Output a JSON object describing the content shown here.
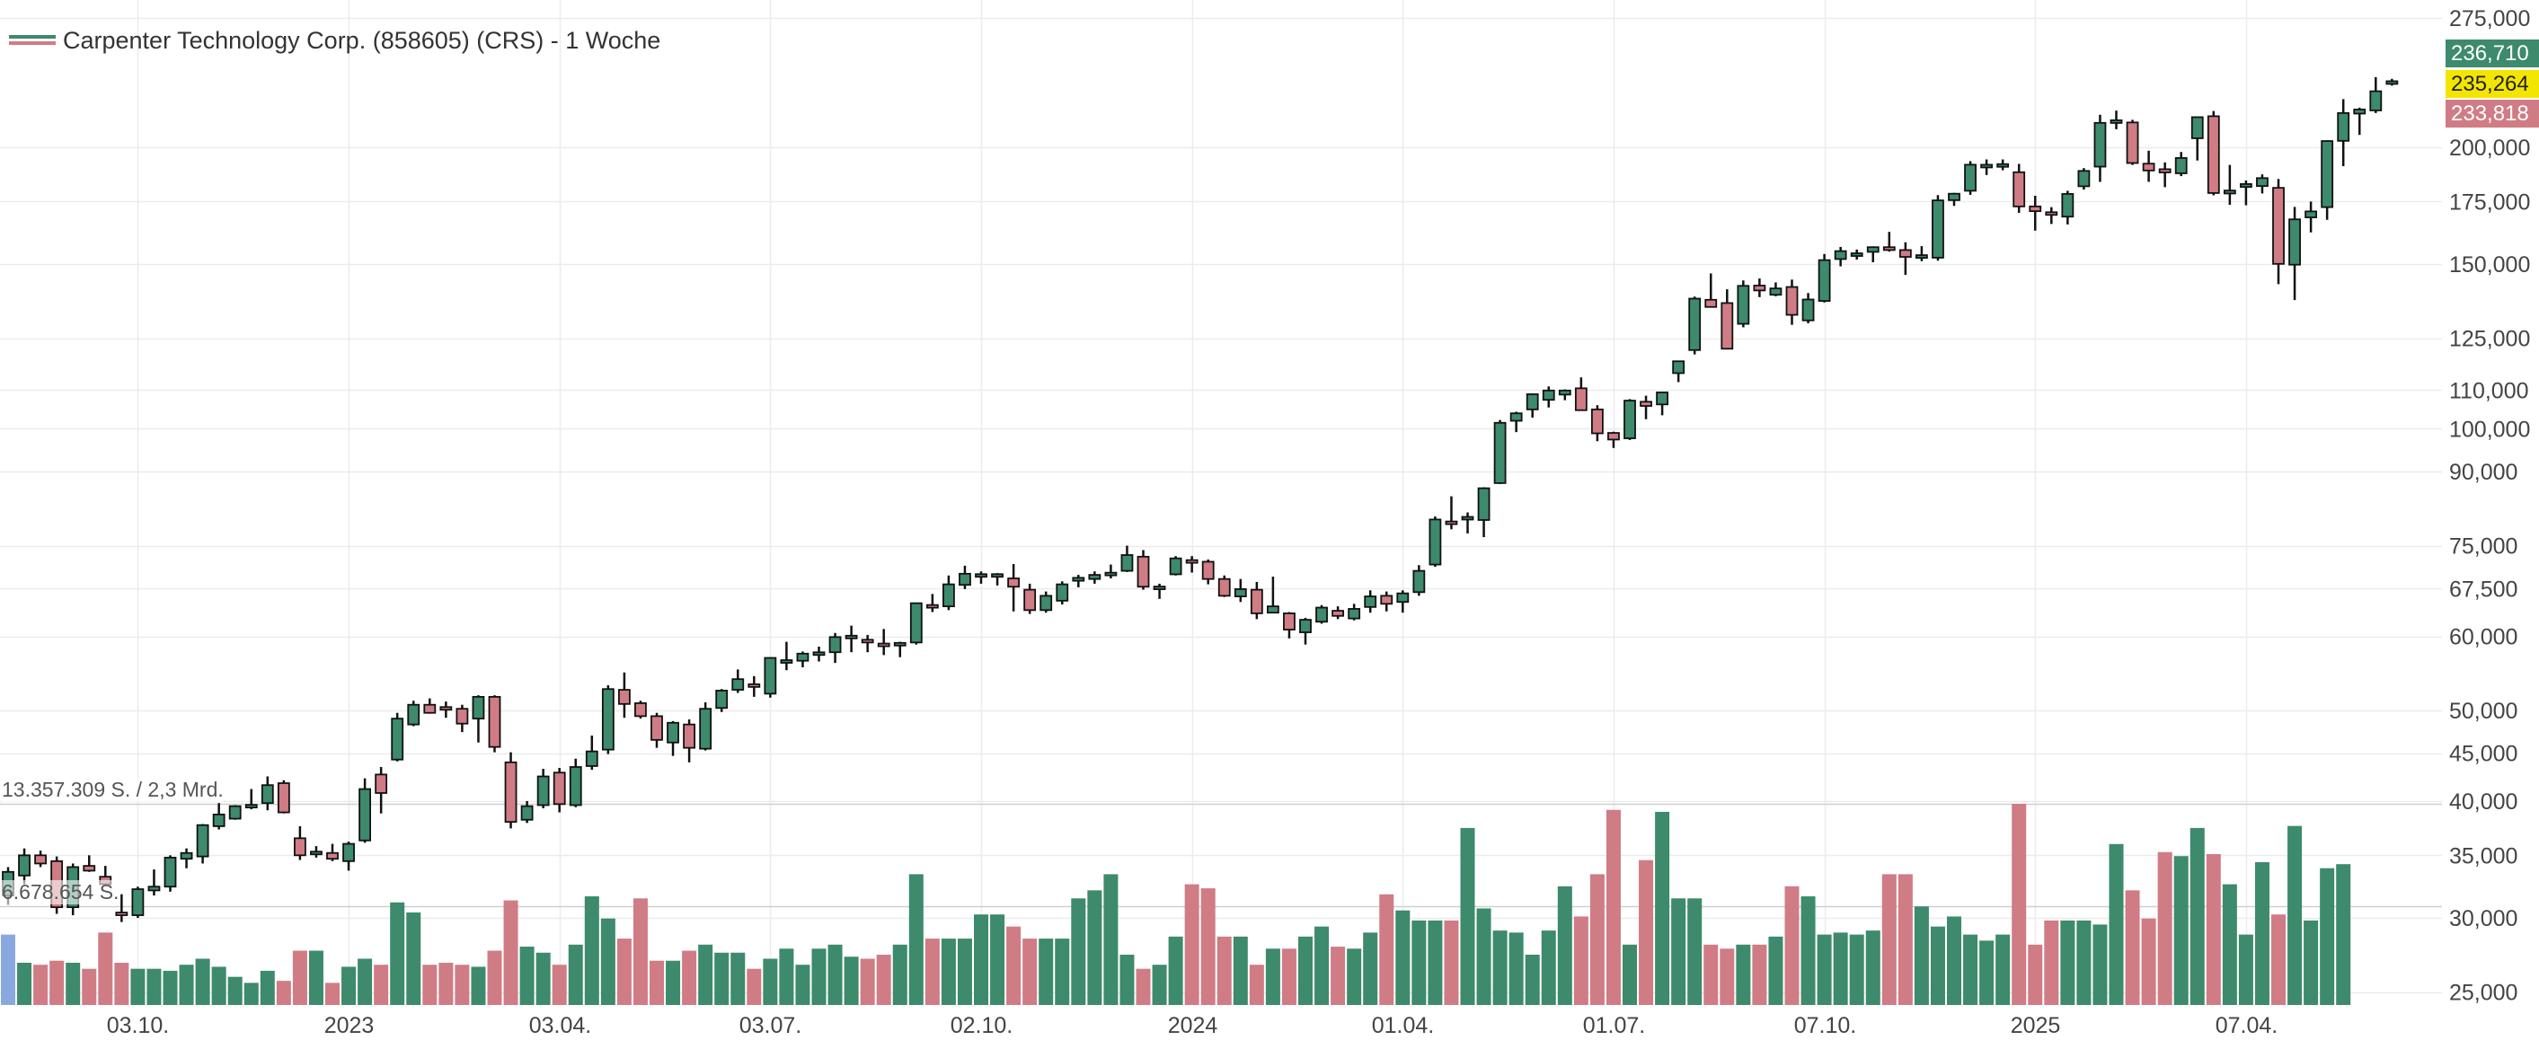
{
  "legend": {
    "title": "Carpenter Technology Corp. (858605) (CRS) - 1 Woche"
  },
  "price_tags": {
    "high": "236,710",
    "last": "235,264",
    "low": "233,818"
  },
  "volume_labels": {
    "max": "13.357.309 S. / 2,3 Mrd.",
    "mid": "6.678.654 S."
  },
  "colors": {
    "up": "#3d8a6c",
    "down": "#d07c85",
    "first_volume": "#8aa8e0",
    "tag_high": "#3d8a6c",
    "tag_last": "#f2e600",
    "tag_low": "#d07c85",
    "grid": "#ececec",
    "separator": "#cfcfcf"
  },
  "chart_data": {
    "type": "candlestick",
    "title": "Carpenter Technology Corp. (858605) (CRS) - 1 Woche",
    "y_scale": "log",
    "ylim": [
      26,
      275
    ],
    "y_ticks": [
      {
        "value": 275,
        "label": "275,000"
      },
      {
        "value": 200,
        "label": "200,000"
      },
      {
        "value": 175,
        "label": "175,000"
      },
      {
        "value": 150,
        "label": "150,000"
      },
      {
        "value": 125,
        "label": "125,000"
      },
      {
        "value": 110,
        "label": "110,000"
      },
      {
        "value": 100,
        "label": "100,000"
      },
      {
        "value": 90,
        "label": "90,000"
      },
      {
        "value": 75,
        "label": "75,000"
      },
      {
        "value": 67.5,
        "label": "67,500"
      },
      {
        "value": 60,
        "label": "60,000"
      },
      {
        "value": 50,
        "label": "50,000"
      },
      {
        "value": 45,
        "label": "45,000"
      },
      {
        "value": 40,
        "label": "40,000"
      },
      {
        "value": 35,
        "label": "35,000"
      },
      {
        "value": 30,
        "label": "30,000"
      },
      {
        "value": 25,
        "label": "25,000"
      }
    ],
    "x_ticks": [
      {
        "index": 8,
        "label": "03.10."
      },
      {
        "index": 21,
        "label": "2023"
      },
      {
        "index": 34,
        "label": "03.04."
      },
      {
        "index": 47,
        "label": "03.07."
      },
      {
        "index": 60,
        "label": "02.10."
      },
      {
        "index": 73,
        "label": "2024"
      },
      {
        "index": 86,
        "label": "01.04."
      },
      {
        "index": 99,
        "label": "01.07."
      },
      {
        "index": 112,
        "label": "07.10."
      },
      {
        "index": 125,
        "label": "2025"
      },
      {
        "index": 138,
        "label": "07.04."
      }
    ],
    "grid": true,
    "legend": "top-left",
    "volume_max_shares": 13357309,
    "candles": [
      [
        31.7,
        34.0,
        31.0,
        33.6
      ],
      [
        33.3,
        35.6,
        32.6,
        35.0
      ],
      [
        35.0,
        35.4,
        34.0,
        34.3
      ],
      [
        34.5,
        34.9,
        30.3,
        30.8
      ],
      [
        30.8,
        34.3,
        30.2,
        34.0
      ],
      [
        34.1,
        35.0,
        33.6,
        33.7
      ],
      [
        33.2,
        34.1,
        32.6,
        32.6
      ],
      [
        30.4,
        31.8,
        29.7,
        30.2
      ],
      [
        30.2,
        32.4,
        30.0,
        32.2
      ],
      [
        32.1,
        33.8,
        31.7,
        32.4
      ],
      [
        32.4,
        35.0,
        32.0,
        34.8
      ],
      [
        34.7,
        35.6,
        33.9,
        35.2
      ],
      [
        34.9,
        37.8,
        34.3,
        37.7
      ],
      [
        37.6,
        39.8,
        37.3,
        38.7
      ],
      [
        38.3,
        39.6,
        38.2,
        39.5
      ],
      [
        39.5,
        41.2,
        39.2,
        39.5
      ],
      [
        39.8,
        42.5,
        39.1,
        41.6
      ],
      [
        41.8,
        42.1,
        38.8,
        38.9
      ],
      [
        36.5,
        37.6,
        34.6,
        35.0
      ],
      [
        35.1,
        35.8,
        34.8,
        35.3
      ],
      [
        35.2,
        36.0,
        34.5,
        34.7
      ],
      [
        34.5,
        36.2,
        33.7,
        36.0
      ],
      [
        36.3,
        42.3,
        36.1,
        41.2
      ],
      [
        42.7,
        43.5,
        38.8,
        40.8
      ],
      [
        44.3,
        49.7,
        44.1,
        49.0
      ],
      [
        48.3,
        51.2,
        48.1,
        50.7
      ],
      [
        50.7,
        51.5,
        49.6,
        49.7
      ],
      [
        50.4,
        51.1,
        49.1,
        50.1
      ],
      [
        50.2,
        50.7,
        47.4,
        48.4
      ],
      [
        49.0,
        51.9,
        46.2,
        51.7
      ],
      [
        51.7,
        51.9,
        45.1,
        45.7
      ],
      [
        44.0,
        45.1,
        37.4,
        38.0
      ],
      [
        38.2,
        40.0,
        37.9,
        39.5
      ],
      [
        39.6,
        43.3,
        39.3,
        42.5
      ],
      [
        42.9,
        43.4,
        38.9,
        39.7
      ],
      [
        39.6,
        44.4,
        39.4,
        43.5
      ],
      [
        43.6,
        47.0,
        43.2,
        45.2
      ],
      [
        45.4,
        53.2,
        44.9,
        52.7
      ],
      [
        52.6,
        54.9,
        49.1,
        50.8
      ],
      [
        50.9,
        51.2,
        49.0,
        49.3
      ],
      [
        49.3,
        49.7,
        45.6,
        46.5
      ],
      [
        46.2,
        48.7,
        44.7,
        48.5
      ],
      [
        48.3,
        48.9,
        44.0,
        45.6
      ],
      [
        45.5,
        51.0,
        45.3,
        50.2
      ],
      [
        50.3,
        52.7,
        49.8,
        52.5
      ],
      [
        52.6,
        55.3,
        52.2,
        54.0
      ],
      [
        53.3,
        54.4,
        51.7,
        53.0
      ],
      [
        52.1,
        57.0,
        51.6,
        56.9
      ],
      [
        56.3,
        59.2,
        55.2,
        56.5
      ],
      [
        56.5,
        57.8,
        55.6,
        57.5
      ],
      [
        57.4,
        58.5,
        56.4,
        57.6
      ],
      [
        57.7,
        60.5,
        56.2,
        59.9
      ],
      [
        59.9,
        61.6,
        57.7,
        59.9
      ],
      [
        59.5,
        60.2,
        57.7,
        59.1
      ],
      [
        58.8,
        61.1,
        57.3,
        58.7
      ],
      [
        58.7,
        59.2,
        57.0,
        59.0
      ],
      [
        59.1,
        65.2,
        58.8,
        65.1
      ],
      [
        64.8,
        66.6,
        63.7,
        64.4
      ],
      [
        64.6,
        69.7,
        64.0,
        68.2
      ],
      [
        68.1,
        71.4,
        67.4,
        70.0
      ],
      [
        69.7,
        70.4,
        68.3,
        69.7
      ],
      [
        69.7,
        70.1,
        68.0,
        69.7
      ],
      [
        69.2,
        71.7,
        63.8,
        67.8
      ],
      [
        67.3,
        68.3,
        63.4,
        64.0
      ],
      [
        64.0,
        67.0,
        63.6,
        66.3
      ],
      [
        65.5,
        68.7,
        64.9,
        68.2
      ],
      [
        68.8,
        69.8,
        67.7,
        69.3
      ],
      [
        69.1,
        70.4,
        68.3,
        69.8
      ],
      [
        69.8,
        71.6,
        69.2,
        70.1
      ],
      [
        70.5,
        75.0,
        70.3,
        73.3
      ],
      [
        73.0,
        74.2,
        67.3,
        67.8
      ],
      [
        67.4,
        68.3,
        65.8,
        67.8
      ],
      [
        69.9,
        73.1,
        69.7,
        72.7
      ],
      [
        72.2,
        73.1,
        70.2,
        72.1
      ],
      [
        72.1,
        72.5,
        68.2,
        69.1
      ],
      [
        69.1,
        69.7,
        66.1,
        66.3
      ],
      [
        66.2,
        69.1,
        65.3,
        67.4
      ],
      [
        67.3,
        68.6,
        62.6,
        63.5
      ],
      [
        63.6,
        69.5,
        63.5,
        64.6
      ],
      [
        63.5,
        63.7,
        59.7,
        61.0
      ],
      [
        60.6,
        62.8,
        58.8,
        62.5
      ],
      [
        62.2,
        64.8,
        61.9,
        64.4
      ],
      [
        63.9,
        64.6,
        62.6,
        63.1
      ],
      [
        62.7,
        65.0,
        62.4,
        64.2
      ],
      [
        64.5,
        67.2,
        63.6,
        66.2
      ],
      [
        66.3,
        67.0,
        63.8,
        65.0
      ],
      [
        65.3,
        67.2,
        63.6,
        66.7
      ],
      [
        66.9,
        71.5,
        66.3,
        70.5
      ],
      [
        71.6,
        80.6,
        71.2,
        80.0
      ],
      [
        79.5,
        84.7,
        78.1,
        79.2
      ],
      [
        80.1,
        81.4,
        77.3,
        80.4
      ],
      [
        79.9,
        86.6,
        76.6,
        86.4
      ],
      [
        87.5,
        102.2,
        87.3,
        101.5
      ],
      [
        102.0,
        104.3,
        99.2,
        103.9
      ],
      [
        104.9,
        109.1,
        102.8,
        108.9
      ],
      [
        107.4,
        111.0,
        105.4,
        109.9
      ],
      [
        108.8,
        110.2,
        107.3,
        109.9
      ],
      [
        110.5,
        113.5,
        104.8,
        104.7
      ],
      [
        104.9,
        106.0,
        97.0,
        98.9
      ],
      [
        99.0,
        99.3,
        95.4,
        97.4
      ],
      [
        97.7,
        107.6,
        97.3,
        107.2
      ],
      [
        106.9,
        108.5,
        102.4,
        105.8
      ],
      [
        106.2,
        108.5,
        103.4,
        109.4
      ],
      [
        114.7,
        117.5,
        112.2,
        118.1
      ],
      [
        121.4,
        138.5,
        120.1,
        137.8
      ],
      [
        137.4,
        146.6,
        135.4,
        135.0
      ],
      [
        136.3,
        141.0,
        121.9,
        121.8
      ],
      [
        129.5,
        144.1,
        128.4,
        142.2
      ],
      [
        142.3,
        144.8,
        138.3,
        140.6
      ],
      [
        139.1,
        143.4,
        138.6,
        141.3
      ],
      [
        141.8,
        144.4,
        129.2,
        132.4
      ],
      [
        130.6,
        139.7,
        129.7,
        137.5
      ],
      [
        137.0,
        153.8,
        136.5,
        151.5
      ],
      [
        151.9,
        156.5,
        149.2,
        154.9
      ],
      [
        153.1,
        155.5,
        151.7,
        154.0
      ],
      [
        154.6,
        156.7,
        150.7,
        156.4
      ],
      [
        156.4,
        162.4,
        154.7,
        155.3
      ],
      [
        155.3,
        158.3,
        146.1,
        152.7
      ],
      [
        152.6,
        156.8,
        151.1,
        153.1
      ],
      [
        152.4,
        177.8,
        151.3,
        175.5
      ],
      [
        175.6,
        178.8,
        173.1,
        178.4
      ],
      [
        179.7,
        193.3,
        177.9,
        191.6
      ],
      [
        190.7,
        194.1,
        186.8,
        191.2
      ],
      [
        191.2,
        194.1,
        189.0,
        191.3
      ],
      [
        188.1,
        192.0,
        170.2,
        172.9
      ],
      [
        172.9,
        177.5,
        162.9,
        170.9
      ],
      [
        170.4,
        172.6,
        165.6,
        169.4
      ],
      [
        168.6,
        179.7,
        165.4,
        178.3
      ],
      [
        181.7,
        190.0,
        180.2,
        188.7
      ],
      [
        190.7,
        216.7,
        183.7,
        212.4
      ],
      [
        212.4,
        218.9,
        209.1,
        213.7
      ],
      [
        212.6,
        214.0,
        191.5,
        192.4
      ],
      [
        192.1,
        198.3,
        183.7,
        188.9
      ],
      [
        189.5,
        192.7,
        181.3,
        188.0
      ],
      [
        187.6,
        197.7,
        186.3,
        194.8
      ],
      [
        204.5,
        214.4,
        193.6,
        215.4
      ],
      [
        215.9,
        218.7,
        177.7,
        178.7
      ],
      [
        178.5,
        191.5,
        173.6,
        179.8
      ],
      [
        181.4,
        184.3,
        173.4,
        182.7
      ],
      [
        181.8,
        187.1,
        178.5,
        185.4
      ],
      [
        181.0,
        185.0,
        142.8,
        150.1
      ],
      [
        149.8,
        172.7,
        137.3,
        167.5
      ],
      [
        168.3,
        175.0,
        162.2,
        170.8
      ],
      [
        172.6,
        203.4,
        167.3,
        203.1
      ],
      [
        203.2,
        225.2,
        190.9,
        217.6
      ],
      [
        217.3,
        220.5,
        206.2,
        219.5
      ],
      [
        219.0,
        237.7,
        217.6,
        229.6
      ],
      [
        233.8,
        236.7,
        232.8,
        235.3
      ]
    ],
    "volume_fraction": [
      0.35,
      0.21,
      0.2,
      0.22,
      0.21,
      0.18,
      0.36,
      0.21,
      0.18,
      0.18,
      0.17,
      0.2,
      0.23,
      0.19,
      0.14,
      0.11,
      0.17,
      0.12,
      0.27,
      0.27,
      0.11,
      0.19,
      0.23,
      0.2,
      0.51,
      0.46,
      0.2,
      0.21,
      0.2,
      0.19,
      0.27,
      0.52,
      0.29,
      0.26,
      0.2,
      0.3,
      0.54,
      0.43,
      0.33,
      0.53,
      0.22,
      0.22,
      0.27,
      0.3,
      0.26,
      0.26,
      0.18,
      0.23,
      0.28,
      0.2,
      0.28,
      0.3,
      0.24,
      0.23,
      0.25,
      0.3,
      0.65,
      0.33,
      0.33,
      0.33,
      0.45,
      0.45,
      0.39,
      0.33,
      0.33,
      0.33,
      0.53,
      0.57,
      0.65,
      0.25,
      0.18,
      0.2,
      0.34,
      0.6,
      0.58,
      0.34,
      0.34,
      0.2,
      0.28,
      0.28,
      0.34,
      0.39,
      0.29,
      0.28,
      0.36,
      0.55,
      0.47,
      0.42,
      0.42,
      0.42,
      0.88,
      0.48,
      0.37,
      0.36,
      0.25,
      0.37,
      0.59,
      0.44,
      0.65,
      0.97,
      0.3,
      0.72,
      0.96,
      0.53,
      0.53,
      0.3,
      0.28,
      0.3,
      0.3,
      0.34,
      0.59,
      0.54,
      0.35,
      0.36,
      0.35,
      0.37,
      0.65,
      0.65,
      0.49,
      0.39,
      0.44,
      0.35,
      0.32,
      0.35,
      1.0,
      0.3,
      0.42,
      0.42,
      0.42,
      0.4,
      0.8,
      0.57,
      0.43,
      0.76,
      0.74,
      0.88,
      0.75,
      0.6,
      0.35,
      0.71,
      0.45,
      0.89,
      0.42,
      0.68,
      0.7
    ]
  }
}
